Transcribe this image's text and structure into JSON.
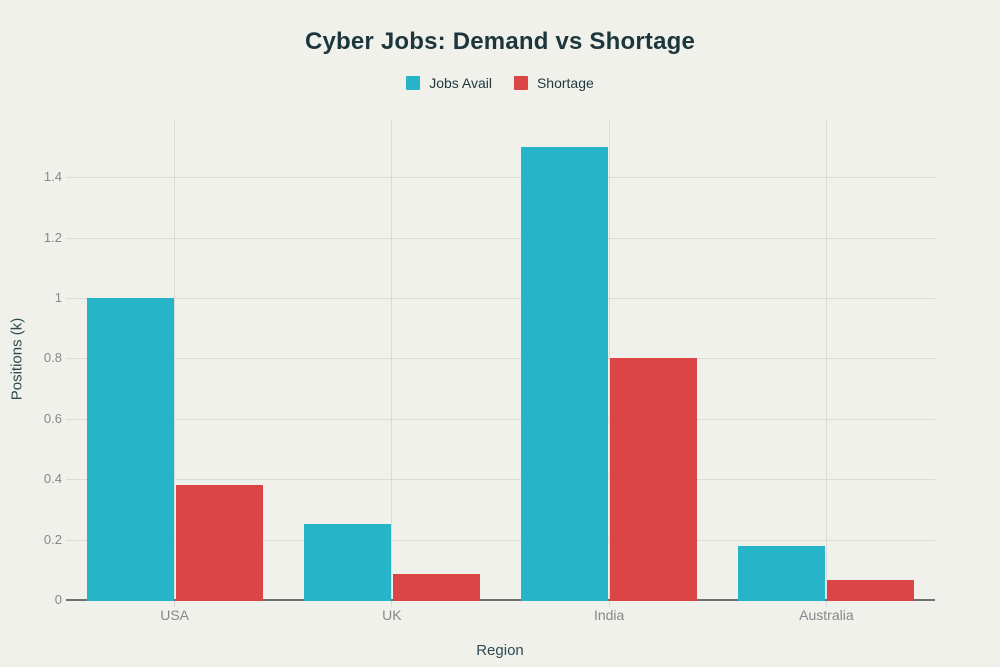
{
  "chart_data": {
    "type": "bar",
    "title": "Cyber Jobs: Demand vs Shortage",
    "xlabel": "Region",
    "ylabel": "Positions (k)",
    "categories": [
      "USA",
      "UK",
      "India",
      "Australia"
    ],
    "series": [
      {
        "name": "Jobs Avail",
        "color": "#26b4c8",
        "values": [
          1.0,
          0.25,
          1.5,
          0.18
        ]
      },
      {
        "name": "Shortage",
        "color": "#dc4545",
        "values": [
          0.38,
          0.085,
          0.8,
          0.065
        ]
      }
    ],
    "ylim": [
      0,
      1.6
    ],
    "yticks": [
      "0",
      "0.2",
      "0.4",
      "0.6",
      "0.8",
      "1",
      "1.2",
      "1.4"
    ],
    "ytick_values": [
      0,
      0.2,
      0.4,
      0.6,
      0.8,
      1,
      1.2,
      1.4
    ],
    "grid": true,
    "legend_position": "top"
  },
  "colors": {
    "background": "#f1f1ec",
    "bar_teal": "#26b4c8",
    "bar_red": "#dc4545",
    "title_text": "#1c363c",
    "axis_title_text": "#2d4a50",
    "tick_text": "#85888a",
    "gridline": "#dcdbd5",
    "axis_line": "#6d7073"
  }
}
